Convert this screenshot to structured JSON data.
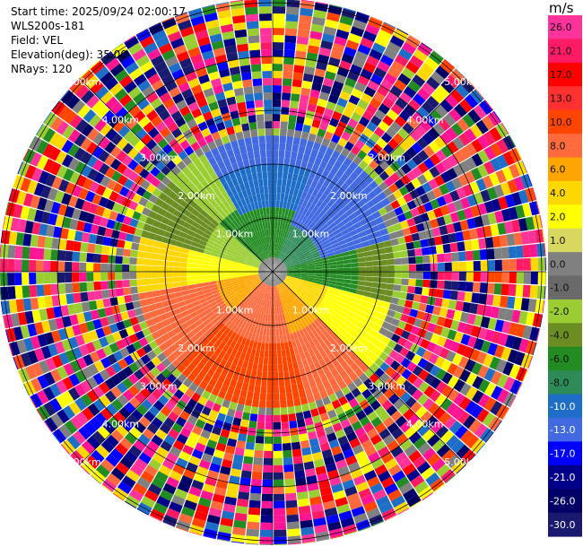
{
  "info": {
    "start_time": "Start time: 2025/09/24 02:00:17",
    "station": "WLS200s-181",
    "field": "Field: VEL",
    "elevation": "Elevation(deg): 35.00",
    "nrays": "NRays: 120"
  },
  "chart_data": {
    "type": "heatmap",
    "projection": "polar-ppi",
    "field": "VEL",
    "nrays": 120,
    "ring_labels": [
      "1.00km",
      "2.00km",
      "3.00km",
      "4.00km",
      "5.00km"
    ],
    "ring_ranges_km": [
      1,
      2,
      3,
      4,
      5
    ],
    "max_range_km": 5.0,
    "colorbar": {
      "unit": "m/s",
      "ticks": [
        "26.0",
        "21.0",
        "17.0",
        "13.0",
        "10.0",
        "8.0",
        "6.0",
        "4.0",
        "2.0",
        "1.0",
        "0.0",
        "-1.0",
        "-2.0",
        "-4.0",
        "-6.0",
        "-8.0",
        "-10.0",
        "-13.0",
        "-17.0",
        "-21.0",
        "-26.0",
        "-30.0"
      ],
      "colors": [
        "#ff3399",
        "#ff1a66",
        "#ff0000",
        "#ff3030",
        "#ff4500",
        "#ff6a3d",
        "#ffa500",
        "#ffd700",
        "#ffff00",
        "#d8d860",
        "#808080",
        "#696969",
        "#9acd32",
        "#6b8e23",
        "#228b22",
        "#2e8b57",
        "#1e6ec8",
        "#4169e1",
        "#0000ff",
        "#00008b",
        "#000066",
        "#191970"
      ]
    }
  }
}
